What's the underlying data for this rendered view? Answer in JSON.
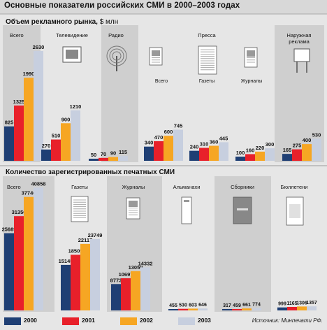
{
  "title": "Основные показатели российских СМИ в 2000–2003 годах",
  "source": "Источник: Минпечати РФ.",
  "colors": {
    "2000": "#1f3f74",
    "2001": "#e8202a",
    "2002": "#f6a623",
    "2003": "#c7cfdf",
    "panel_dark": "#cfcfcf",
    "panel_light": "#e6e6e6"
  },
  "legend": [
    "2000",
    "2001",
    "2002",
    "2003"
  ],
  "chart_data": [
    {
      "type": "bar",
      "title": "Объем рекламного рынка,",
      "unit": "$ млн",
      "series_names": [
        "2000",
        "2001",
        "2002",
        "2003"
      ],
      "groups": [
        {
          "label": "Всего",
          "icon": "",
          "values": [
            825,
            1325,
            1990,
            2630
          ]
        },
        {
          "label": "Телевидение",
          "icon": "tv-icon",
          "values": [
            270,
            510,
            900,
            1210
          ]
        },
        {
          "label": "Радио",
          "icon": "radio-tower-icon",
          "values": [
            50,
            70,
            90,
            115
          ]
        },
        {
          "label": "",
          "icon": "",
          "values": [
            340,
            470,
            600,
            745
          ]
        },
        {
          "label": "",
          "icon": "",
          "values": [
            240,
            310,
            360,
            445
          ]
        },
        {
          "label": "",
          "icon": "",
          "values": [
            100,
            160,
            220,
            300
          ]
        },
        {
          "label": "Наружная реклама",
          "icon": "billboard-icon",
          "values": [
            165,
            275,
            400,
            530
          ]
        }
      ],
      "press": {
        "label": "Пресса",
        "sublabels": [
          "Всего",
          "Газеты",
          "Журналы"
        ]
      }
    },
    {
      "type": "bar",
      "title": "Количество зарегистрированных печатных СМИ",
      "series_names": [
        "2000",
        "2001",
        "2002",
        "2003"
      ],
      "groups": [
        {
          "label": "Всего",
          "icon": "",
          "values": [
            25689,
            31356,
            37746,
            40858
          ]
        },
        {
          "label": "Газеты",
          "icon": "newspaper-icon",
          "values": [
            15145,
            18505,
            22117,
            23749
          ]
        },
        {
          "label": "Журналы",
          "icon": "magazine-icon",
          "values": [
            8773,
            10697,
            13059,
            14332
          ]
        },
        {
          "label": "Альманахи",
          "icon": "almanac-icon",
          "values": [
            455,
            530,
            603,
            646
          ]
        },
        {
          "label": "Сборники",
          "icon": "collection-icon",
          "values": [
            317,
            459,
            661,
            774
          ]
        },
        {
          "label": "Бюллетени",
          "icon": "bulletin-icon",
          "values": [
            999,
            1165,
            1306,
            1357
          ]
        }
      ]
    }
  ]
}
